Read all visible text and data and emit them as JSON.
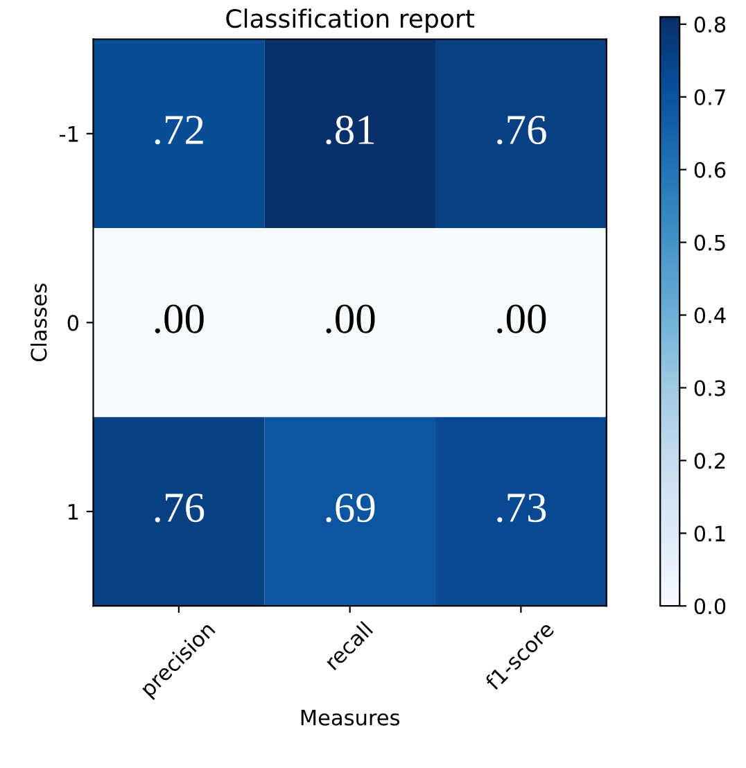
{
  "chart_data": {
    "type": "heatmap",
    "title": "Classification report",
    "xlabel": "Measures",
    "ylabel": "Classes",
    "categories": [
      "precision",
      "recall",
      "f1-score"
    ],
    "y_categories": [
      "-1",
      "0",
      "1"
    ],
    "cells": [
      [
        0.72,
        0.81,
        0.76
      ],
      [
        0.0,
        0.0,
        0.0
      ],
      [
        0.76,
        0.69,
        0.73
      ]
    ],
    "cell_labels": [
      [
        ".72",
        ".81",
        ".76"
      ],
      [
        ".00",
        ".00",
        ".00"
      ],
      [
        ".76",
        ".69",
        ".73"
      ]
    ],
    "clim": [
      0.0,
      0.81
    ],
    "cticks": [
      {
        "value": 0,
        "label": "0.0"
      },
      0.1,
      0.2,
      0.3,
      0.4,
      0.5,
      0.6,
      0.7,
      0.8
    ]
  }
}
